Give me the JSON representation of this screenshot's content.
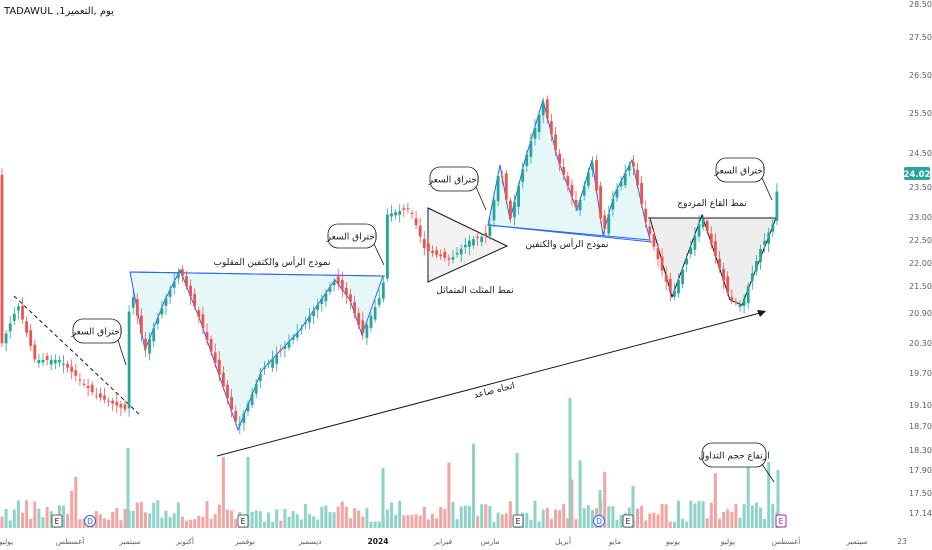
{
  "header": {
    "title": "TADAWUL ,1يوم ,التعمير"
  },
  "colors": {
    "up": "#26a69a",
    "down": "#ef5350",
    "vol_up": "#8fd3c8",
    "vol_down": "#f3a5a3",
    "pattern_fill": "#e6f7f7",
    "pattern_line": "#2962ff",
    "badge": "#26a69a"
  },
  "price_axis": {
    "ticks": [
      "28.50",
      "27.50",
      "26.50",
      "25.50",
      "24.50",
      "23.50",
      "23.00",
      "22.50",
      "22.00",
      "21.50",
      "20.90",
      "20.30",
      "19.70",
      "19.10",
      "18.70",
      "18.30",
      "17.90",
      "17.50",
      "17.14"
    ],
    "last_price": "24.02"
  },
  "time_axis": {
    "labels": [
      "يوليو",
      "أغسطس",
      "سبتمبر",
      "أكتوبر",
      "نوفمبر",
      "ديسمبر",
      "2024",
      "فبراير",
      "مارس",
      "أبريل",
      "مايو",
      "يونيو",
      "يوليو",
      "أغسطس",
      "سبتمبر",
      "23"
    ]
  },
  "annotations": {
    "breakout_1": "اختراق السعر",
    "breakout_2": "اختراق السعر",
    "breakout_3": "اختراق السعر",
    "breakout_4": "اختراق السعر",
    "inv_hs": "نموذج الرأس والكتفين المقلوب",
    "sym_triangle": "نمط المثلث المتماثل",
    "hs": "نموذج الرأس والكتفين",
    "double_bottom": "نمط القاع المزدوج",
    "uptrend": "اتجاه صاعد",
    "volume_rise": "ارتفاع حجم التداول"
  },
  "event_markers": [
    {
      "label": "E"
    },
    {
      "label": "D"
    },
    {
      "label": "E"
    },
    {
      "label": "E"
    },
    {
      "label": "D"
    },
    {
      "label": "E"
    },
    {
      "label": "E"
    }
  ],
  "chart_data": {
    "type": "candlestick",
    "ylabel": "",
    "ylim": [
      17.14,
      28.5
    ],
    "key_points": [
      {
        "x": "يوليو",
        "y": 20.5
      },
      {
        "x": "أغسطس",
        "y": 19.2
      },
      {
        "x": "سبتمبر",
        "y": 22.0
      },
      {
        "x": "أكتوبر",
        "y": 21.8
      },
      {
        "x": "نوفمبر",
        "y": 18.8
      },
      {
        "x": "ديسمبر",
        "y": 21.7
      },
      {
        "x": "2024",
        "y": 23.3
      },
      {
        "x": "فبراير",
        "y": 22.3
      },
      {
        "x": "مارس",
        "y": 23.5
      },
      {
        "x": "أبريل",
        "y": 25.6
      },
      {
        "x": "مايو",
        "y": 22.6
      },
      {
        "x": "يونيو",
        "y": 21.3
      },
      {
        "x": "يوليو",
        "y": 21.0
      },
      {
        "x": "أغسطس",
        "y": 24.02
      }
    ],
    "last": 24.02
  }
}
